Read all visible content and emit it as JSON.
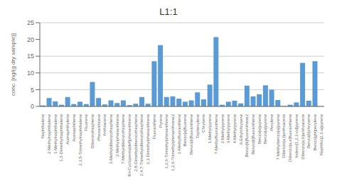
{
  "chart_data": {
    "type": "bar",
    "title": "L1:1",
    "ylabel": "conc. [ng/(g dry sample)]",
    "categories": [
      "Naphthalene",
      "2-Methylnaphthalene",
      "1-Methylnaphthalene",
      "1,6-Dimethylnaphthalene",
      "Acenaphthylene",
      "Acenaphthene",
      "2,3,5-Trimethylnaphthalene",
      "Fluorene",
      "Dibenzothiophene",
      "Phenanthrene",
      "Anthracene",
      "3-Methyldibenzothiophene",
      "2-Methylphenanthrene",
      "7-Methyldibenzothiophene",
      "4H-Cyclopenta[def]phenanthrene",
      "2,8-Dimethyldibenzothiophene",
      "2,4,7-Trimethyldibenzothiophene",
      "2,3-Dimethylphenanthrene",
      "Fluoranthene",
      "Pyrene",
      "1,2,6-Trimethylphenanthrene",
      "1,2,6-Trimethylphenanthrene2",
      "1-Methylfluoranthene",
      "Benzo[a]fluorene",
      "Benzo[b]fluoranthene",
      "Triphenylene",
      "Chrysene",
      "1-Methylpyrene",
      "7-Methylfluoranthene",
      "2-Methylpyrene",
      "3-Methylpyrene",
      "4-Methylpyrene",
      "6-Ethylchrysene",
      "Benzo[b]fluoranthene2",
      "Benzo[k]fluoranthene",
      "Benzo[e]pyrene",
      "Benzo[a]pyrene",
      "Perylene",
      "7-Methylbenzo[a]pyrene",
      "Dibenzo[a,l]anthracene",
      "Dibenzo[a,e]fluoranthene",
      "Indeno[1,2,3-cd]pyrene",
      "Dibenzo[a,h]anthracene",
      "Benzo[b]chrysene",
      "Benzo[ghi]perylene",
      "Naphtho[2,3-a]pyrene"
    ],
    "values": [
      0.3,
      2.5,
      1.5,
      0.5,
      2.8,
      0.7,
      1.4,
      0.7,
      7.3,
      2.5,
      0.6,
      1.8,
      1.0,
      1.8,
      0.4,
      0.8,
      2.8,
      0.8,
      13.5,
      18.3,
      2.8,
      3.0,
      2.3,
      1.4,
      1.8,
      4.2,
      2.1,
      6.5,
      20.7,
      0.5,
      1.4,
      1.7,
      0.9,
      6.2,
      3.0,
      3.6,
      6.3,
      5.0,
      1.9,
      0.1,
      0.5,
      1.2,
      13.0,
      1.7,
      13.5,
      0.0
    ],
    "color": "#5B9BD5",
    "ylim": [
      0,
      25
    ],
    "yticks": [
      0,
      5,
      10,
      15,
      20,
      25
    ],
    "grid": true
  }
}
